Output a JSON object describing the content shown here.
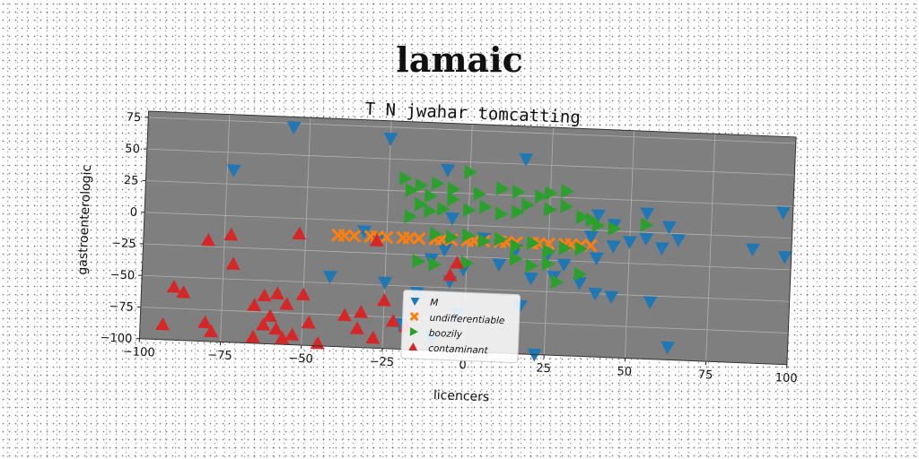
{
  "figure": {
    "suptitle": "lamaic"
  },
  "chart_data": {
    "type": "scatter",
    "title": "T N jwahar tomcatting",
    "xlabel": "licencers",
    "ylabel": "gastroenterologic",
    "xlim": [
      -100,
      100
    ],
    "ylim": [
      -100,
      80
    ],
    "xticks": [
      -100,
      -75,
      -50,
      -25,
      0,
      25,
      50,
      75,
      100
    ],
    "yticks": [
      -100,
      -75,
      -50,
      -25,
      0,
      25,
      50,
      75
    ],
    "xtick_labels": [
      "−100",
      "−75",
      "−50",
      "−25",
      "0",
      "25",
      "50",
      "75",
      "100"
    ],
    "ytick_labels": [
      "−100",
      "−75",
      "−50",
      "−25",
      "0",
      "25",
      "50",
      "75"
    ],
    "grid": true,
    "plot_background": "#7f7f7f",
    "legend_position": "lower-center",
    "series": [
      {
        "name": "M",
        "marker": "triangle-down",
        "color": "#1f77b4",
        "points": [
          [
            -55,
            72
          ],
          [
            -25,
            66
          ],
          [
            17,
            54
          ],
          [
            -73,
            36
          ],
          [
            -7,
            43
          ],
          [
            -32,
            -8
          ],
          [
            -28,
            -15
          ],
          [
            -7,
            -20
          ],
          [
            -11,
            -28
          ],
          [
            -5,
            -45
          ],
          [
            -42,
            -45
          ],
          [
            -25,
            -48
          ],
          [
            -15,
            -55
          ],
          [
            -1,
            -35
          ],
          [
            10,
            -30
          ],
          [
            20,
            -40
          ],
          [
            27,
            -38
          ],
          [
            35,
            -42
          ],
          [
            40,
            -50
          ],
          [
            45,
            -52
          ],
          [
            15,
            -18
          ],
          [
            25,
            -20
          ],
          [
            30,
            -28
          ],
          [
            40,
            -22
          ],
          [
            45,
            -12
          ],
          [
            50,
            -8
          ],
          [
            55,
            -5
          ],
          [
            60,
            -12
          ],
          [
            38,
            -5
          ],
          [
            40,
            12
          ],
          [
            45,
            5
          ],
          [
            55,
            15
          ],
          [
            62,
            5
          ],
          [
            65,
            -5
          ],
          [
            57,
            -55
          ],
          [
            63,
            -90
          ],
          [
            88,
            -10
          ],
          [
            98,
            -15
          ],
          [
            97,
            20
          ],
          [
            5,
            -10
          ],
          [
            -5,
            5
          ],
          [
            17,
            -62
          ],
          [
            22,
            -100
          ],
          [
            -10,
            -90
          ],
          [
            -2,
            -70
          ],
          [
            -20,
            -80
          ]
        ]
      },
      {
        "name": "undifferentiable",
        "marker": "x",
        "color": "#ff7f0e",
        "points": [
          [
            -40,
            -12
          ],
          [
            -35,
            -12
          ],
          [
            -30,
            -12
          ],
          [
            -25,
            -12
          ],
          [
            -20,
            -12
          ],
          [
            -15,
            -12
          ],
          [
            -10,
            -12
          ],
          [
            -5,
            -12
          ],
          [
            0,
            -12
          ],
          [
            5,
            -12
          ],
          [
            10,
            -12
          ],
          [
            15,
            -12
          ],
          [
            20,
            -12
          ],
          [
            25,
            -12
          ],
          [
            30,
            -12
          ],
          [
            35,
            -12
          ],
          [
            38,
            -12
          ],
          [
            -38,
            -12
          ],
          [
            -28,
            -12
          ],
          [
            -18,
            -12
          ],
          [
            -8,
            -12
          ],
          [
            2,
            -12
          ],
          [
            12,
            -12
          ],
          [
            22,
            -12
          ],
          [
            32,
            -12
          ]
        ]
      },
      {
        "name": "boozily",
        "marker": "triangle-right",
        "color": "#2ca02c",
        "points": [
          [
            0,
            42
          ],
          [
            -15,
            30
          ],
          [
            -10,
            32
          ],
          [
            -5,
            28
          ],
          [
            -18,
            26
          ],
          [
            -12,
            22
          ],
          [
            3,
            25
          ],
          [
            10,
            30
          ],
          [
            15,
            28
          ],
          [
            22,
            25
          ],
          [
            25,
            28
          ],
          [
            30,
            30
          ],
          [
            -15,
            15
          ],
          [
            -12,
            10
          ],
          [
            -8,
            12
          ],
          [
            -18,
            5
          ],
          [
            0,
            12
          ],
          [
            5,
            15
          ],
          [
            10,
            10
          ],
          [
            15,
            12
          ],
          [
            18,
            18
          ],
          [
            25,
            15
          ],
          [
            30,
            18
          ],
          [
            35,
            10
          ],
          [
            38,
            8
          ],
          [
            40,
            4
          ],
          [
            45,
            2
          ],
          [
            55,
            6
          ],
          [
            -10,
            -8
          ],
          [
            -5,
            -10
          ],
          [
            0,
            -8
          ],
          [
            5,
            -12
          ],
          [
            10,
            -10
          ],
          [
            15,
            -15
          ],
          [
            20,
            -12
          ],
          [
            25,
            -18
          ],
          [
            30,
            -15
          ],
          [
            35,
            -15
          ],
          [
            -15,
            -30
          ],
          [
            -10,
            -32
          ],
          [
            0,
            -30
          ],
          [
            15,
            -25
          ],
          [
            20,
            -30
          ],
          [
            25,
            -28
          ],
          [
            28,
            -42
          ],
          [
            35,
            -35
          ],
          [
            -5,
            20
          ],
          [
            -20,
            35
          ]
        ]
      },
      {
        "name": "contaminant",
        "marker": "triangle-up",
        "color": "#d62728",
        "points": [
          [
            -28,
            -15
          ],
          [
            -52,
            -12
          ],
          [
            -73,
            -15
          ],
          [
            -80,
            -20
          ],
          [
            -72,
            -38
          ],
          [
            -58,
            -60
          ],
          [
            -62,
            -62
          ],
          [
            -55,
            -68
          ],
          [
            -50,
            -60
          ],
          [
            -90,
            -58
          ],
          [
            -87,
            -62
          ],
          [
            -80,
            -85
          ],
          [
            -78,
            -92
          ],
          [
            -65,
            -95
          ],
          [
            -62,
            -85
          ],
          [
            -58,
            -88
          ],
          [
            -56,
            -95
          ],
          [
            -45,
            -98
          ],
          [
            -48,
            -82
          ],
          [
            -60,
            -78
          ],
          [
            -33,
            -85
          ],
          [
            -28,
            -92
          ],
          [
            -32,
            -72
          ],
          [
            -25,
            -62
          ],
          [
            -22,
            -78
          ],
          [
            -18,
            -82
          ],
          [
            -5,
            -40
          ],
          [
            -3,
            -30
          ],
          [
            -93,
            -88
          ],
          [
            -65,
            -70
          ],
          [
            -53,
            -92
          ],
          [
            -37,
            -75
          ]
        ]
      }
    ]
  }
}
